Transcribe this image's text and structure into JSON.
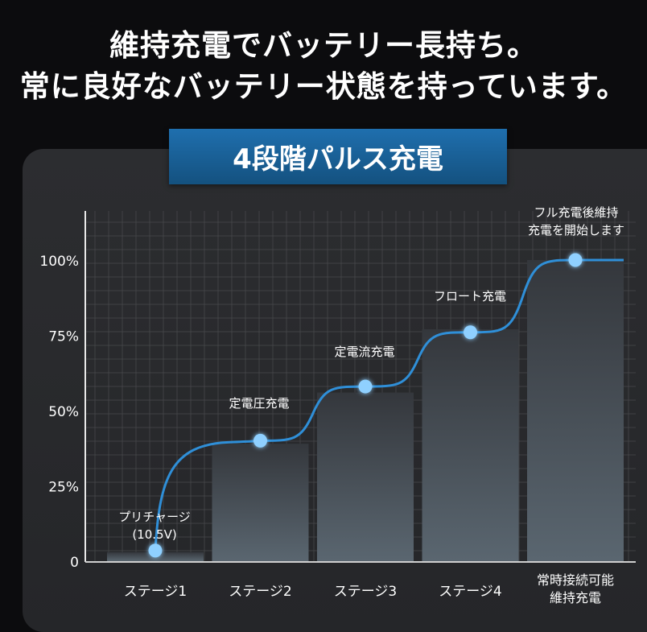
{
  "headline": {
    "line1": "維持充電でバッテリー長持ち。",
    "line2": "常に良好なバッテリー状態を持っています。"
  },
  "banner_title": "4段階パルス充電",
  "chart_data": {
    "type": "bar",
    "title": "4段階パルス充電",
    "categories": [
      [
        "ステージ1"
      ],
      [
        "ステージ2"
      ],
      [
        "ステージ3"
      ],
      [
        "ステージ4"
      ],
      [
        "常時接続可能",
        "維持充電"
      ]
    ],
    "values": [
      3,
      39,
      56,
      77,
      100
    ],
    "curve_points": [
      3.5,
      40,
      58,
      76,
      100
    ],
    "point_labels": [
      [
        "プリチャージ",
        "(10.5V)"
      ],
      [
        "定電圧充電"
      ],
      [
        "定電流充電"
      ],
      [
        "フロート充電"
      ],
      [
        "フル充電後維持",
        "充電を開始します"
      ]
    ],
    "yticks": [
      "0",
      "25%",
      "50%",
      "75%",
      "100%"
    ],
    "ytick_values": [
      0,
      25,
      50,
      75,
      100
    ],
    "ylim": [
      0,
      100
    ],
    "grid": true,
    "colors": {
      "curve": "#2f8fd8",
      "point": "#8fd0ff",
      "bar_top": "#3a3d42",
      "bar_bottom": "#5b6872",
      "grid": "#4a4b4e"
    }
  }
}
